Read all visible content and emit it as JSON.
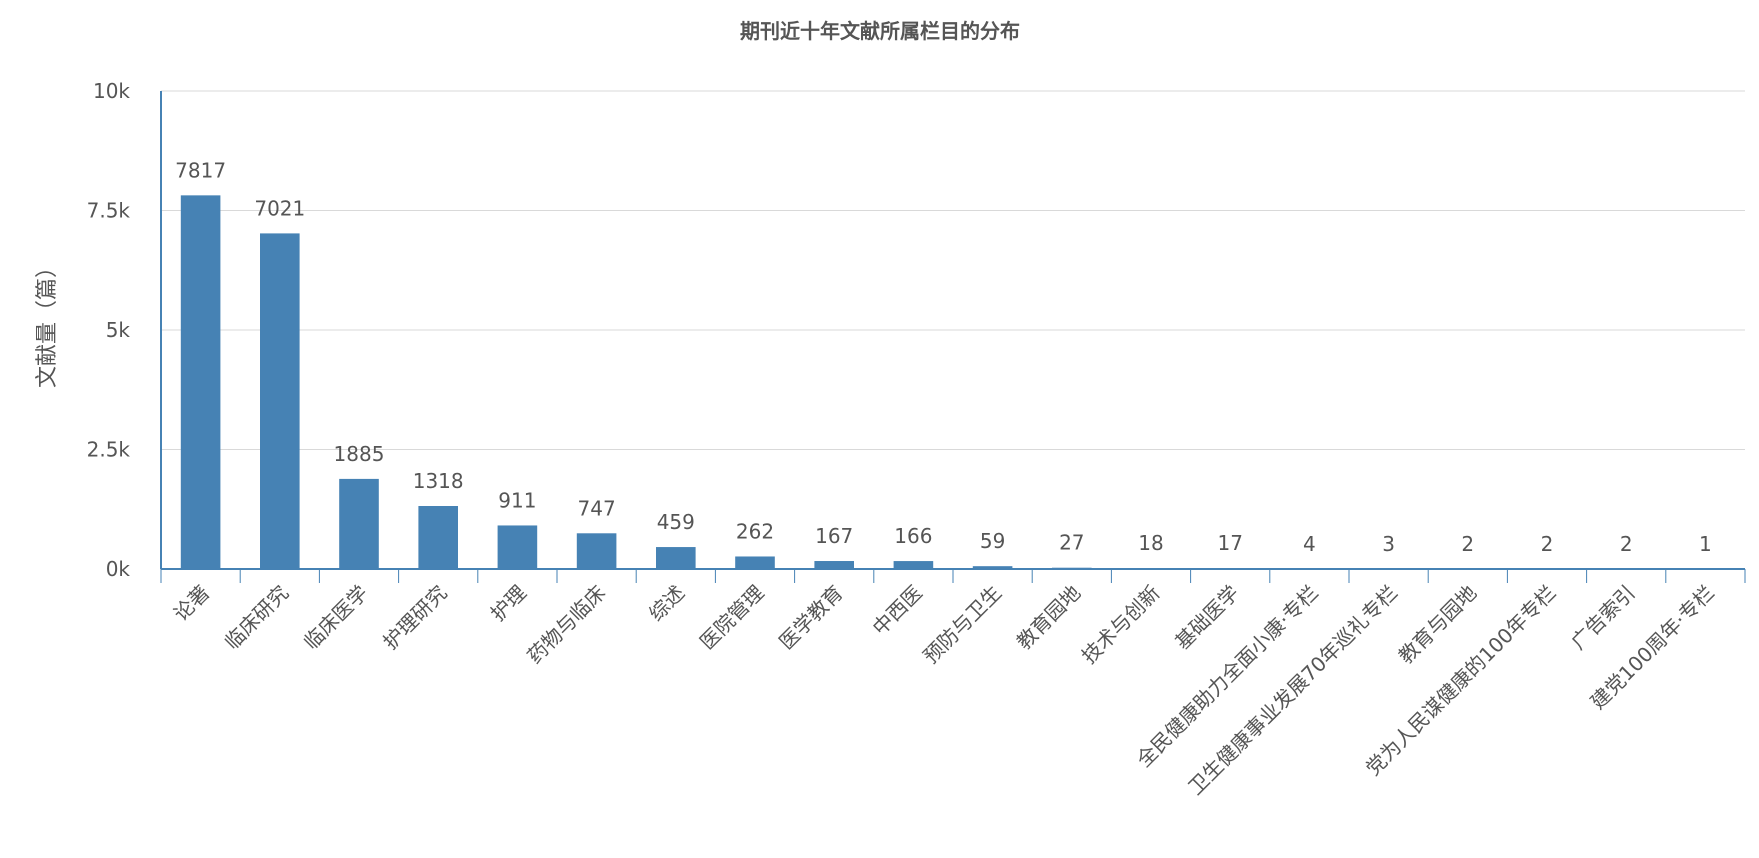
{
  "chart_data": {
    "type": "bar",
    "title": "期刊近十年文献所属栏目的分布",
    "xlabel": "",
    "ylabel": "文献量（篇）",
    "ylim": [
      0,
      10000
    ],
    "yticks": [
      0,
      2500,
      5000,
      7500,
      10000
    ],
    "ytick_labels": [
      "0k",
      "2.5k",
      "5k",
      "7.5k",
      "10k"
    ],
    "grid": true,
    "bar_color": "#4682b4",
    "categories": [
      "论著",
      "临床研究",
      "临床医学",
      "护理研究",
      "护理",
      "药物与临床",
      "综述",
      "医院管理",
      "医学教育",
      "中西医",
      "预防与卫生",
      "教育园地",
      "技术与创新",
      "基础医学",
      "全民健康助力全面小康·专栏",
      "卫生健康事业发展70年巡礼专栏",
      "教育与园地",
      "党为人民谋健康的100年专栏",
      "广告索引",
      "建党100周年·专栏"
    ],
    "values": [
      7817,
      7021,
      1885,
      1318,
      911,
      747,
      459,
      262,
      167,
      166,
      59,
      27,
      18,
      17,
      4,
      3,
      2,
      2,
      2,
      1
    ]
  }
}
